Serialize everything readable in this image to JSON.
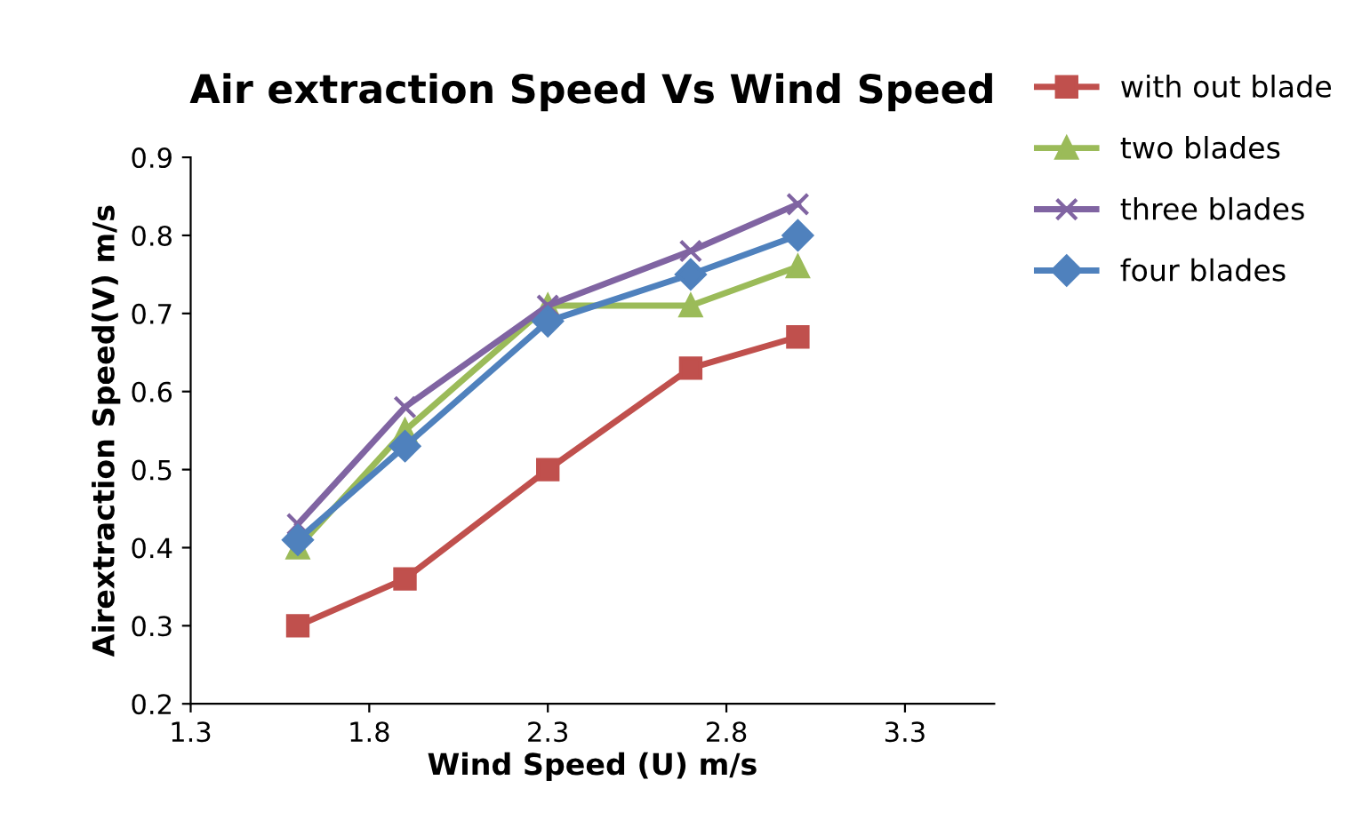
{
  "chart_data": {
    "type": "line",
    "title": "Air extraction Speed Vs Wind Speed",
    "xlabel": "Wind Speed (U) m/s",
    "ylabel": "Airextraction Speed(V) m/s",
    "x": [
      1.6,
      1.9,
      2.3,
      2.7,
      3.0
    ],
    "series": [
      {
        "name": "with out blade",
        "color": "#c0504d",
        "marker": "square",
        "values": [
          0.3,
          0.36,
          0.5,
          0.63,
          0.67
        ]
      },
      {
        "name": "two blades",
        "color": "#9bbb59",
        "marker": "triangle",
        "values": [
          0.4,
          0.55,
          0.71,
          0.71,
          0.76
        ]
      },
      {
        "name": "three blades",
        "color": "#8064a2",
        "marker": "cross",
        "values": [
          0.43,
          0.58,
          0.71,
          0.78,
          0.84
        ]
      },
      {
        "name": "four blades",
        "color": "#4f81bd",
        "marker": "diamond",
        "values": [
          0.41,
          0.53,
          0.69,
          0.75,
          0.8
        ]
      }
    ],
    "xlim": [
      1.3,
      3.55
    ],
    "xticks": [
      1.3,
      1.8,
      2.3,
      2.8,
      3.3
    ],
    "ylim": [
      0.2,
      0.9
    ],
    "yticks": [
      0.2,
      0.3,
      0.4,
      0.5,
      0.6,
      0.7,
      0.8,
      0.9
    ],
    "grid": false,
    "legend": "right",
    "line_style": "solid"
  }
}
